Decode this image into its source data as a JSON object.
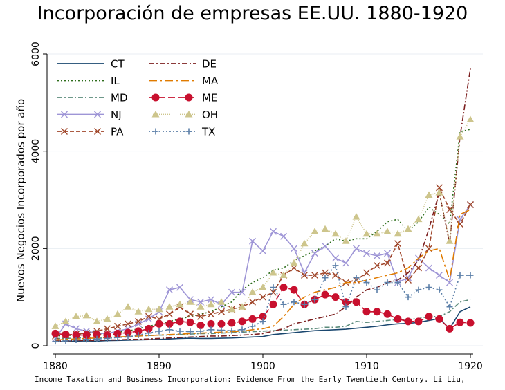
{
  "chart_data": {
    "type": "line",
    "title": "Incorporación de empresas EE.UU. 1880-1920",
    "xlabel": "",
    "ylabel": "Nuevos Negocios Incorporados por año",
    "xlim": [
      1880,
      1920
    ],
    "ylim": [
      0,
      6000
    ],
    "xticks": [
      1880,
      1890,
      1900,
      1910,
      1920
    ],
    "yticks": [
      0,
      2000,
      4000,
      6000
    ],
    "grid": "horizontal",
    "legend": "top-left",
    "source": "Income Taxation and Business Incorporation: Evidence From the Early Twentieth Century. Li Liu,",
    "x": [
      1880,
      1881,
      1882,
      1883,
      1884,
      1885,
      1886,
      1887,
      1888,
      1889,
      1890,
      1891,
      1892,
      1893,
      1894,
      1895,
      1896,
      1897,
      1898,
      1899,
      1900,
      1901,
      1902,
      1903,
      1904,
      1905,
      1906,
      1907,
      1908,
      1909,
      1910,
      1911,
      1912,
      1913,
      1914,
      1915,
      1916,
      1917,
      1918,
      1919,
      1920
    ],
    "series": [
      {
        "name": "CT",
        "color": "#1a476f",
        "dash": "",
        "marker": "none",
        "values": [
          80,
          90,
          95,
          100,
          95,
          105,
          110,
          115,
          120,
          125,
          130,
          140,
          150,
          155,
          150,
          150,
          155,
          160,
          170,
          180,
          190,
          230,
          250,
          270,
          290,
          310,
          320,
          330,
          340,
          360,
          380,
          400,
          430,
          450,
          460,
          480,
          520,
          560,
          350,
          700,
          800
        ]
      },
      {
        "name": "IL",
        "color": "#2d6d1b",
        "dash": "2,3",
        "marker": "none",
        "values": [
          200,
          210,
          220,
          230,
          240,
          260,
          280,
          300,
          350,
          400,
          450,
          500,
          550,
          600,
          650,
          700,
          800,
          900,
          1150,
          1300,
          1400,
          1550,
          1600,
          1750,
          1850,
          1950,
          2050,
          2200,
          2150,
          2200,
          2200,
          2350,
          2550,
          2600,
          2350,
          2550,
          2850,
          2700,
          2500,
          4400,
          4450
        ]
      },
      {
        "name": "MD",
        "color": "#5a8a7a",
        "dash": "7,3,2,3",
        "marker": "none",
        "values": [
          150,
          150,
          160,
          160,
          170,
          170,
          180,
          190,
          200,
          210,
          220,
          220,
          230,
          240,
          250,
          250,
          260,
          270,
          280,
          290,
          300,
          310,
          320,
          330,
          340,
          350,
          380,
          380,
          400,
          500,
          480,
          500,
          520,
          540,
          540,
          560,
          600,
          600,
          700,
          900,
          950
        ]
      },
      {
        "name": "NJ",
        "color": "#9e95d6",
        "dash": "",
        "marker": "x",
        "values": [
          150,
          450,
          350,
          300,
          260,
          250,
          300,
          350,
          450,
          550,
          700,
          1150,
          1200,
          950,
          900,
          950,
          850,
          1100,
          1100,
          2150,
          1950,
          2350,
          2250,
          2000,
          1500,
          1900,
          2050,
          1800,
          1700,
          2000,
          1900,
          1850,
          1900,
          1300,
          1400,
          1800,
          1600,
          1450,
          1300,
          2600,
          2900
        ]
      },
      {
        "name": "PA",
        "color": "#a0462a",
        "dash": "6,3",
        "marker": "x",
        "values": [
          200,
          220,
          240,
          260,
          300,
          350,
          400,
          450,
          500,
          600,
          550,
          650,
          800,
          650,
          600,
          650,
          700,
          750,
          800,
          900,
          1000,
          1100,
          1450,
          1600,
          1450,
          1450,
          1500,
          1450,
          1300,
          1350,
          1500,
          1650,
          1700,
          2100,
          1350,
          1600,
          2000,
          3250,
          2800,
          2500,
          2900
        ]
      },
      {
        "name": "DE",
        "color": "#7c1f1f",
        "dash": "8,3,2,3",
        "marker": "none",
        "values": [
          100,
          100,
          110,
          110,
          110,
          120,
          120,
          130,
          130,
          140,
          150,
          160,
          170,
          180,
          190,
          200,
          200,
          210,
          220,
          230,
          250,
          300,
          350,
          450,
          500,
          550,
          600,
          650,
          800,
          1000,
          1150,
          1200,
          1300,
          1350,
          1500,
          1750,
          2400,
          3150,
          2100,
          4300,
          5700
        ]
      },
      {
        "name": "MA",
        "color": "#e07b00",
        "dash": "12,4,3,4",
        "marker": "none",
        "values": [
          120,
          130,
          140,
          150,
          160,
          170,
          180,
          190,
          200,
          210,
          220,
          230,
          240,
          250,
          260,
          270,
          280,
          290,
          300,
          330,
          350,
          400,
          600,
          850,
          1000,
          1100,
          1150,
          1200,
          1300,
          1300,
          1350,
          1400,
          1450,
          1500,
          1600,
          1800,
          1950,
          2000,
          1350,
          2700,
          2800
        ]
      },
      {
        "name": "ME",
        "color": "#c8102e",
        "dash": "10,4",
        "marker": "circle",
        "values": [
          250,
          230,
          220,
          220,
          230,
          220,
          250,
          270,
          300,
          350,
          450,
          450,
          500,
          480,
          420,
          450,
          450,
          470,
          500,
          550,
          600,
          850,
          1200,
          1150,
          850,
          950,
          1050,
          1000,
          900,
          900,
          700,
          700,
          650,
          550,
          500,
          500,
          600,
          550,
          350,
          480,
          470
        ]
      },
      {
        "name": "OH",
        "color": "#cdc58c",
        "dash": "1,2",
        "marker": "triangle",
        "values": [
          400,
          500,
          600,
          620,
          500,
          550,
          650,
          800,
          700,
          750,
          750,
          800,
          850,
          900,
          800,
          850,
          900,
          750,
          800,
          1100,
          1200,
          1500,
          1450,
          1700,
          2100,
          2350,
          2400,
          2300,
          2150,
          2650,
          2300,
          2300,
          2350,
          2300,
          2400,
          2600,
          3100,
          3150,
          2150,
          4300,
          4650
        ]
      },
      {
        "name": "TX",
        "color": "#5b7fa8",
        "dash": "2,3",
        "marker": "plus",
        "values": [
          90,
          100,
          120,
          130,
          140,
          150,
          170,
          180,
          220,
          260,
          300,
          330,
          300,
          290,
          300,
          330,
          320,
          310,
          330,
          400,
          500,
          1200,
          850,
          900,
          850,
          950,
          1400,
          1650,
          800,
          1400,
          1300,
          1150,
          1300,
          1300,
          1000,
          1150,
          1200,
          1150,
          800,
          1450,
          1450
        ]
      }
    ]
  }
}
